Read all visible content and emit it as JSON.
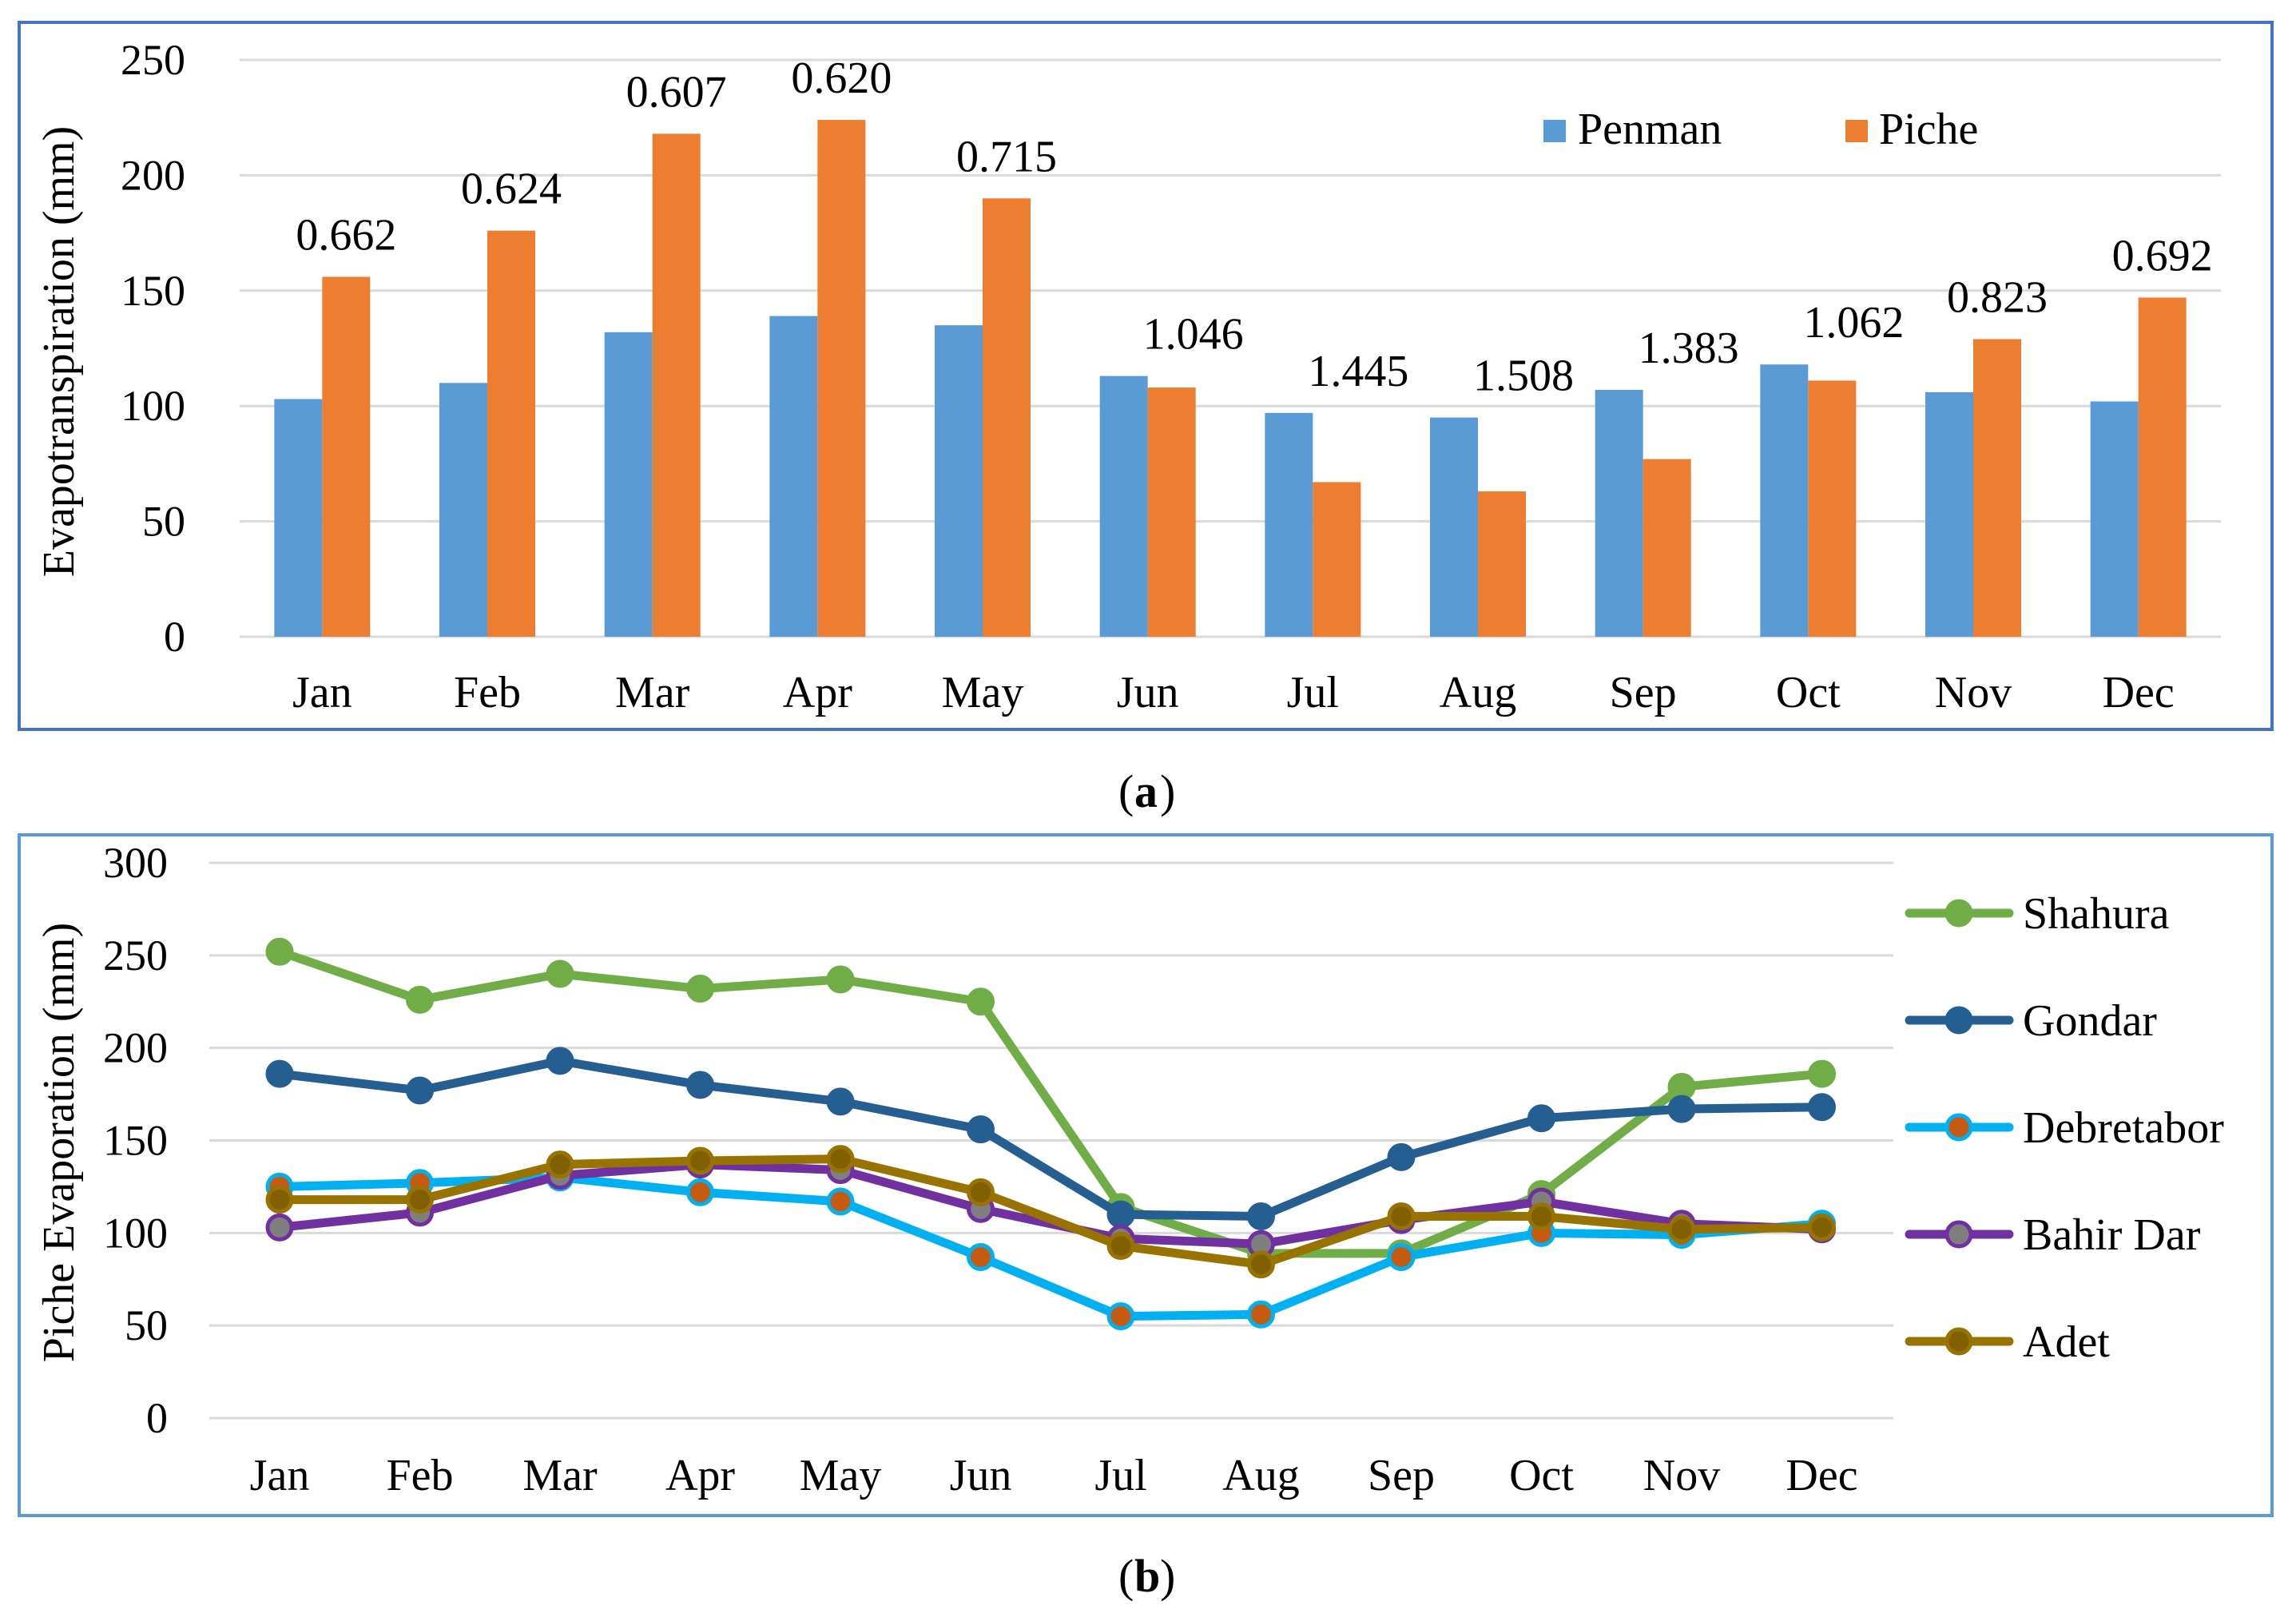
{
  "colors": {
    "penman": "#5B9BD5",
    "piche": "#ED7D31",
    "frame": "#4472C4",
    "frame_b": "#5B9BD5",
    "grid": "#D9D9D9",
    "shahura": "#70AD47",
    "gondar": "#255E91",
    "debretabor": "#00B0F0",
    "debretabor_marker": "#C55A11",
    "bahirdar": "#7030A0",
    "bahirdar_marker": "#7F7F7F",
    "adet": "#997300",
    "adet_marker": "#806000"
  },
  "chart_data": [
    {
      "type": "bar",
      "panel_label": "(a)",
      "panel_letter": "a",
      "ylabel": "Evapotranspiration (mm)",
      "ylim": [
        0,
        250
      ],
      "yticks": [
        "0",
        "50",
        "100",
        "150",
        "200",
        "250"
      ],
      "categories": [
        "Jan",
        "Feb",
        "Mar",
        "Apr",
        "May",
        "Jun",
        "Jul",
        "Aug",
        "Sep",
        "Oct",
        "Nov",
        "Dec"
      ],
      "series": [
        {
          "name": "Penman",
          "values": [
            103,
            110,
            132,
            139,
            135,
            113,
            97,
            95,
            107,
            118,
            106,
            102
          ]
        },
        {
          "name": "Piche",
          "values": [
            156,
            176,
            218,
            224,
            190,
            108,
            67,
            63,
            77,
            111,
            129,
            147
          ]
        }
      ],
      "ratio_labels": [
        "0.662",
        "0.624",
        "0.607",
        "0.620",
        "0.715",
        "1.046",
        "1.445",
        "1.508",
        "1.383",
        "1.062",
        "0.823",
        "0.692"
      ],
      "legend": [
        "Penman",
        "Piche"
      ],
      "legend_position": "top-right"
    },
    {
      "type": "line",
      "panel_label": "(b)",
      "panel_letter": "b",
      "ylabel": "Piche Evaporation (mm)",
      "ylim": [
        0,
        300
      ],
      "yticks": [
        "0",
        "50",
        "100",
        "150",
        "200",
        "250",
        "300"
      ],
      "categories": [
        "Jan",
        "Feb",
        "Mar",
        "Apr",
        "May",
        "Jun",
        "Jul",
        "Aug",
        "Sep",
        "Oct",
        "Nov",
        "Dec"
      ],
      "series": [
        {
          "name": "Shahura",
          "values": [
            252,
            226,
            240,
            232,
            237,
            225,
            114,
            89,
            89,
            121,
            179,
            186
          ]
        },
        {
          "name": "Gondar",
          "values": [
            186,
            177,
            193,
            180,
            171,
            156,
            110,
            109,
            141,
            162,
            167,
            168
          ]
        },
        {
          "name": "Debretabor",
          "values": [
            125,
            127,
            130,
            122,
            117,
            87,
            55,
            56,
            87,
            100,
            99,
            105
          ]
        },
        {
          "name": "Bahir Dar",
          "values": [
            103,
            111,
            131,
            137,
            134,
            113,
            97,
            94,
            107,
            117,
            105,
            102
          ]
        },
        {
          "name": "Adet",
          "values": [
            118,
            118,
            137,
            139,
            140,
            122,
            93,
            83,
            109,
            109,
            102,
            103
          ]
        }
      ],
      "legend": [
        "Shahura",
        "Gondar",
        "Debretabor",
        "Bahir Dar",
        "Adet"
      ],
      "legend_position": "right"
    }
  ]
}
